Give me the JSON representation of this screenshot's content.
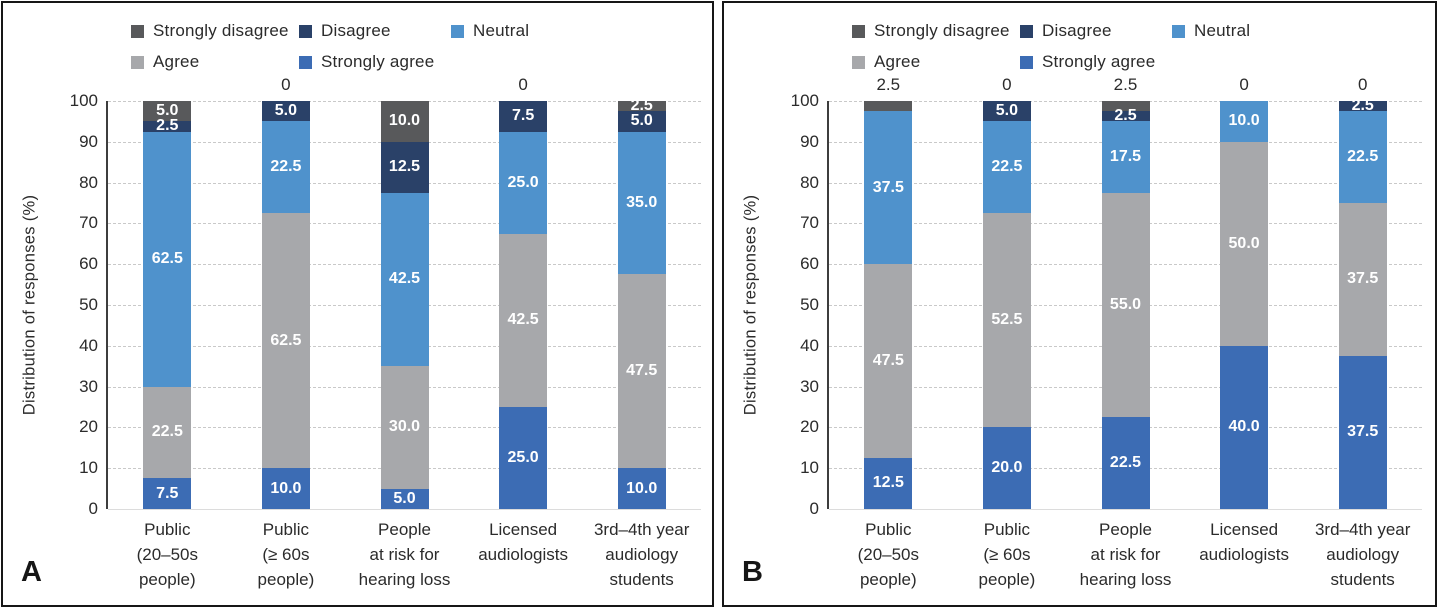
{
  "chart_data": {
    "type": "bar",
    "stacked": true,
    "ylabel": "Distribution of responses (%)",
    "ylim": [
      0,
      100
    ],
    "yticks": [
      0,
      10,
      20,
      30,
      40,
      50,
      60,
      70,
      80,
      90,
      100
    ],
    "grid": "horizontal-dashed",
    "legend_position": "top",
    "legend": [
      {
        "name": "Strongly disagree",
        "color": "#58595b"
      },
      {
        "name": "Disagree",
        "color": "#2a4168"
      },
      {
        "name": "Neutral",
        "color": "#4f92cc"
      },
      {
        "name": "Agree",
        "color": "#a7a8ab"
      },
      {
        "name": "Strongly agree",
        "color": "#3c6cb4"
      }
    ],
    "stack_order_bottom_to_top": [
      "Strongly agree",
      "Agree",
      "Neutral",
      "Disagree",
      "Strongly disagree"
    ],
    "categories": [
      "Public\n(20–50s\npeople)",
      "Public\n(≥ 60s\npeople)",
      "People\nat risk for\nhearing loss",
      "Licensed\naudiologists",
      "3rd–4th year\naudiology\nstudents"
    ],
    "panels": [
      {
        "label": "A",
        "series": [
          {
            "name": "Strongly agree",
            "values": [
              7.5,
              10.0,
              5.0,
              25.0,
              10.0
            ]
          },
          {
            "name": "Agree",
            "values": [
              22.5,
              62.5,
              30.0,
              42.5,
              47.5
            ]
          },
          {
            "name": "Neutral",
            "values": [
              62.5,
              22.5,
              42.5,
              25.0,
              35.0
            ]
          },
          {
            "name": "Disagree",
            "values": [
              2.5,
              5.0,
              12.5,
              7.5,
              5.0
            ]
          },
          {
            "name": "Strongly disagree",
            "values": [
              5.0,
              0,
              10.0,
              0,
              2.5
            ]
          }
        ],
        "segment_labels_bottom_to_top": [
          [
            "7.5",
            "22.5",
            "62.5",
            "2.5",
            "5.0"
          ],
          [
            "10.0",
            "62.5",
            "22.5",
            "5.0",
            ""
          ],
          [
            "5.0",
            "30.0",
            "42.5",
            "12.5",
            "10.0"
          ],
          [
            "25.0",
            "42.5",
            "25.0",
            "7.5",
            ""
          ],
          [
            "10.0",
            "47.5",
            "35.0",
            "5.0",
            "2.5"
          ]
        ],
        "above_bar_labels": [
          "",
          "0",
          "",
          "0",
          ""
        ]
      },
      {
        "label": "B",
        "series": [
          {
            "name": "Strongly agree",
            "values": [
              12.5,
              20.0,
              22.5,
              40.0,
              37.5
            ]
          },
          {
            "name": "Agree",
            "values": [
              47.5,
              52.5,
              55.0,
              50.0,
              37.5
            ]
          },
          {
            "name": "Neutral",
            "values": [
              37.5,
              22.5,
              17.5,
              10.0,
              22.5
            ]
          },
          {
            "name": "Disagree",
            "values": [
              0,
              5.0,
              2.5,
              0,
              2.5
            ]
          },
          {
            "name": "Strongly disagree",
            "values": [
              2.5,
              0,
              2.5,
              0,
              0
            ]
          }
        ],
        "segment_labels_bottom_to_top": [
          [
            "12.5",
            "47.5",
            "37.5",
            "0",
            ""
          ],
          [
            "20.0",
            "52.5",
            "22.5",
            "5.0",
            ""
          ],
          [
            "22.5",
            "55.0",
            "17.5",
            "2.5",
            ""
          ],
          [
            "40.0",
            "50.0",
            "10.0",
            "",
            ""
          ],
          [
            "37.5",
            "37.5",
            "22.5",
            "2.5",
            ""
          ]
        ],
        "above_bar_labels": [
          "2.5",
          "0",
          "2.5",
          "0",
          "0"
        ]
      }
    ]
  }
}
